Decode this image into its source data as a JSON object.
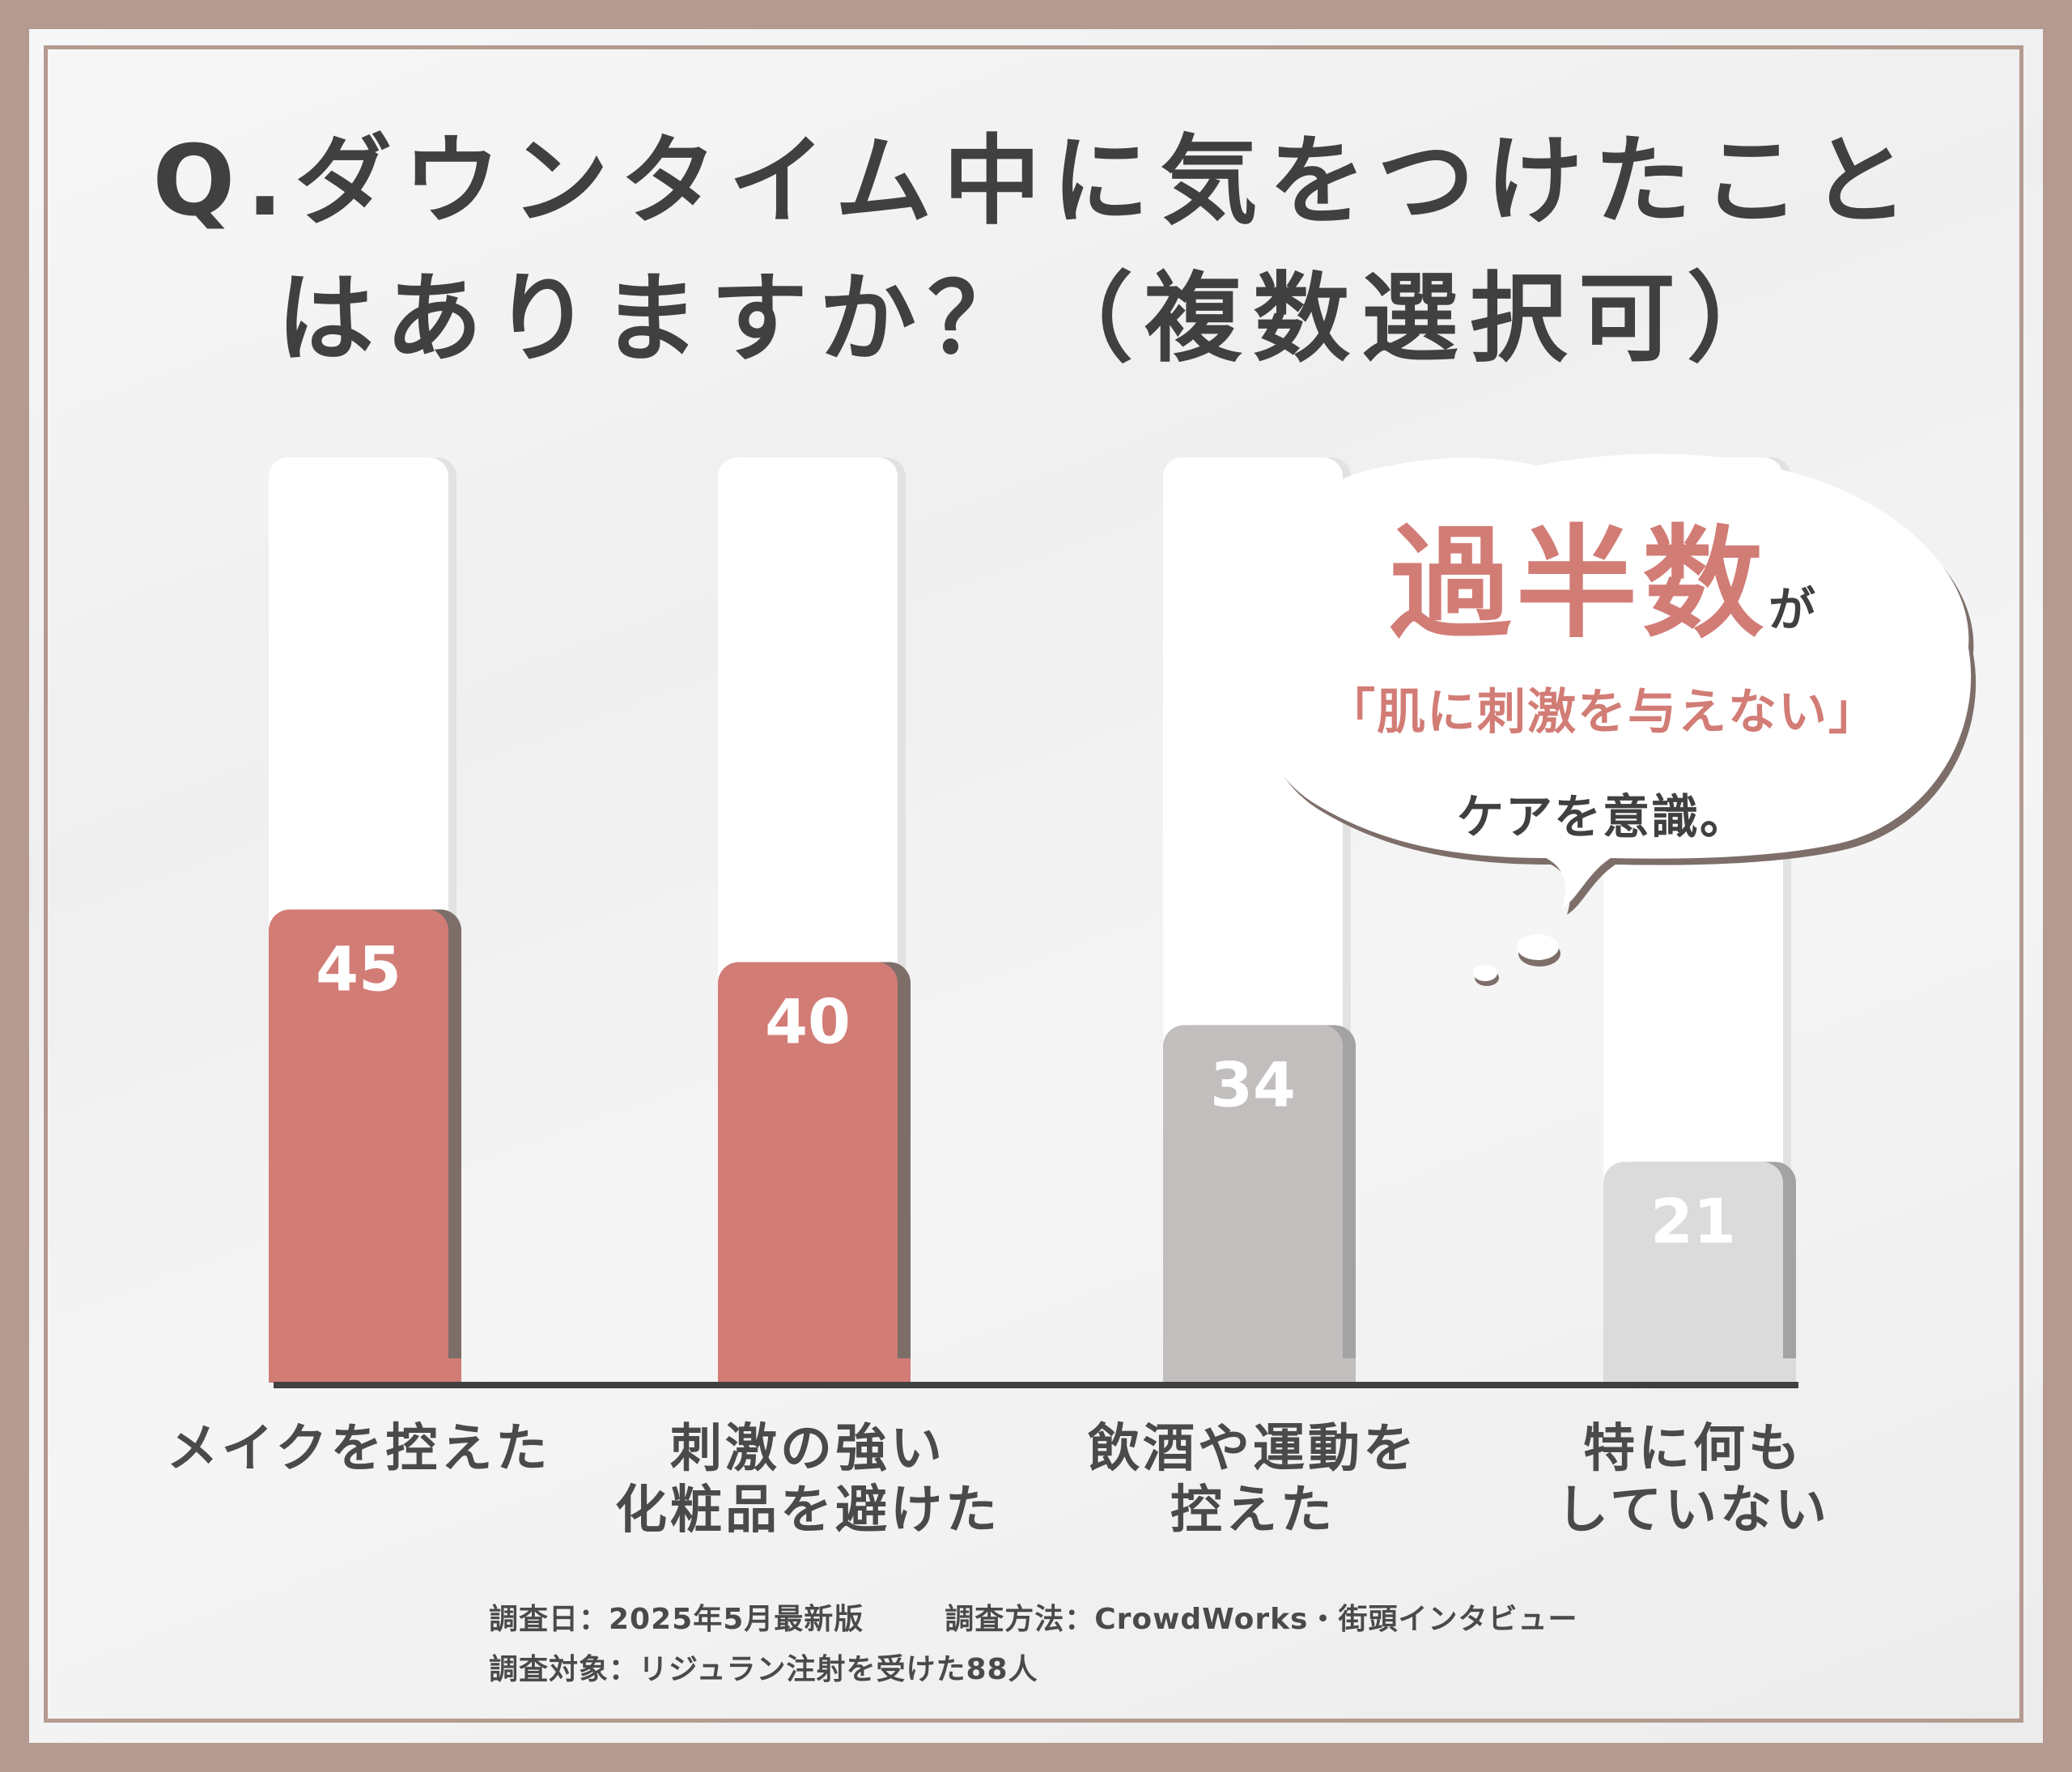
{
  "title_line1": "Q.ダウンタイム中に気をつけたこと",
  "title_line2": "はありますか？（複数選択可）",
  "chart_data": {
    "type": "bar",
    "categories": [
      "メイクを控えた",
      "刺激の強い化粧品を避けた",
      "飲酒や運動を控えた",
      "特に何もしていない"
    ],
    "category_lines": [
      [
        "メイクを控えた"
      ],
      [
        "刺激の強い",
        "化粧品を避けた"
      ],
      [
        "飲酒や運動を",
        "控えた"
      ],
      [
        "特に何も",
        "していない"
      ]
    ],
    "values": [
      45,
      40,
      34,
      21
    ],
    "ylim": [
      0,
      88
    ],
    "bar_colors": [
      "#d27c76",
      "#d27c76",
      "#c2bebd",
      "#dcdbdb"
    ],
    "title": "Q.ダウンタイム中に気をつけたことはありますか？（複数選択可）"
  },
  "bubble": {
    "highlight": "過半数",
    "particle": "が",
    "quote": "「肌に刺激を与えない」",
    "care": "ケアを意識。"
  },
  "footnote": {
    "date": "調査日：2025年5月最新版",
    "method": "調査方法：CrowdWorks・街頭インタビュー",
    "target": "調査対象：リジュラン注射を受けた88人"
  },
  "colors": {
    "accent": "#d27c76",
    "frame": "#b49a91",
    "text": "#404040"
  }
}
